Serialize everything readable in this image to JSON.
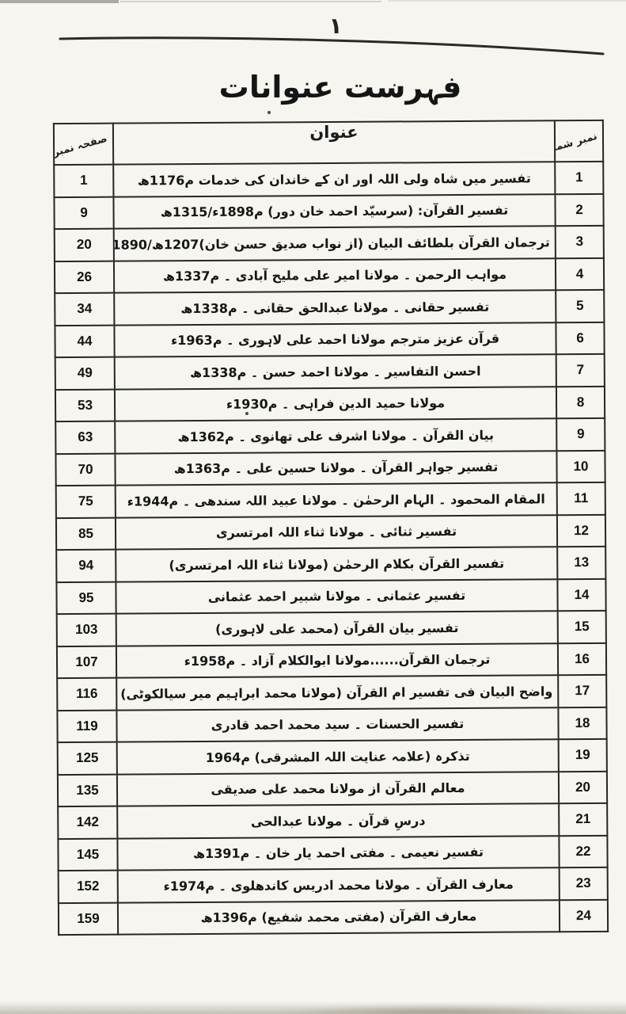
{
  "page": {
    "top_page_marker": "۱",
    "title": "فہرست عنوانات"
  },
  "table": {
    "headers": {
      "serial": "نمبر شمار",
      "title": "عنوان",
      "page": "صفحہ نمبر"
    },
    "rows": [
      {
        "serial": "1",
        "title": "تفسیر میں شاہ ولی اللہ اور ان کے خاندان کی خدمات م1176ھ",
        "page": "1"
      },
      {
        "serial": "2",
        "title": "تفسیر القرآن: (سرسیّد احمد خان دور) م1898ء/1315ھ",
        "page": "9"
      },
      {
        "serial": "3",
        "title": "ترجمان القرآن بلطائف البیان (از نواب صدیق حسن خان)1207ھ/1890ء",
        "page": "20"
      },
      {
        "serial": "4",
        "title": "مواہب الرحمن ۔ مولانا امیر علی ملیح آبادی ۔ م1337ھ",
        "page": "26"
      },
      {
        "serial": "5",
        "title": "تفسیر حقانی ۔ مولانا عبدالحق حقانی ۔ م1338ھ",
        "page": "34"
      },
      {
        "serial": "6",
        "title": "قرآن عزیز مترجم مولانا احمد علی لاہوری ۔ م1963ء",
        "page": "44"
      },
      {
        "serial": "7",
        "title": "احسن التفاسیر ۔ مولانا احمد حسن ۔ م1338ھ",
        "page": "49"
      },
      {
        "serial": "8",
        "title": "مولانا حمید الدین فراہی ۔ م1930ء",
        "page": "53"
      },
      {
        "serial": "9",
        "title": "بیان القرآن ۔ مولانا اشرف علی تھانوی ۔ م1362ھ",
        "page": "63"
      },
      {
        "serial": "10",
        "title": "تفسیر جواہر القرآن ۔ مولانا حسین علی ۔ م1363ھ",
        "page": "70"
      },
      {
        "serial": "11",
        "title": "المقام المحمود ۔ الہام الرحمٰن ۔ مولانا عبید اللہ سندھی ۔ م1944ء",
        "page": "75"
      },
      {
        "serial": "12",
        "title": "تفسیر ثنائی ۔ مولانا ثناء اللہ امرتسری",
        "page": "85"
      },
      {
        "serial": "13",
        "title": "تفسیر القرآن بکلام الرحمٰن (مولانا ثناء اللہ امرتسری)",
        "page": "94"
      },
      {
        "serial": "14",
        "title": "تفسیر عثمانی ۔ مولانا شبیر احمد عثمانی",
        "page": "95"
      },
      {
        "serial": "15",
        "title": "تفسیر بیان القرآن (محمد علی لاہوری)",
        "page": "103"
      },
      {
        "serial": "16",
        "title": "ترجمان القرآن......مولانا ابوالکلام آزاد ۔ م1958ء",
        "page": "107"
      },
      {
        "serial": "17",
        "title": "واضح البیان فی تفسیر ام القرآن (مولانا محمد ابراہیم میر سیالکوٹی)",
        "page": "116"
      },
      {
        "serial": "18",
        "title": "تفسیر الحسنات ۔ سید محمد احمد قادری",
        "page": "119"
      },
      {
        "serial": "19",
        "title": "تذکرہ (علامہ عنایت اللہ المشرقی) م1964",
        "page": "125"
      },
      {
        "serial": "20",
        "title": "معالم القرآن از مولانا محمد علی صدیقی",
        "page": "135"
      },
      {
        "serial": "21",
        "title": "درسِ قرآن ۔ مولانا عبدالحی",
        "page": "142"
      },
      {
        "serial": "22",
        "title": "تفسیر نعیمی ۔ مفتی احمد یار خان ۔ م1391ھ",
        "page": "145"
      },
      {
        "serial": "23",
        "title": "معارف القرآن ۔ مولانا محمد ادریس کاندھلوی ۔ م1974ء",
        "page": "152"
      },
      {
        "serial": "24",
        "title": "معارف القرآن (مفتی محمد شفیع) م1396ھ",
        "page": "159"
      }
    ]
  },
  "colors": {
    "paper": "#f6f5f0",
    "ink": "#1b1b1b"
  }
}
